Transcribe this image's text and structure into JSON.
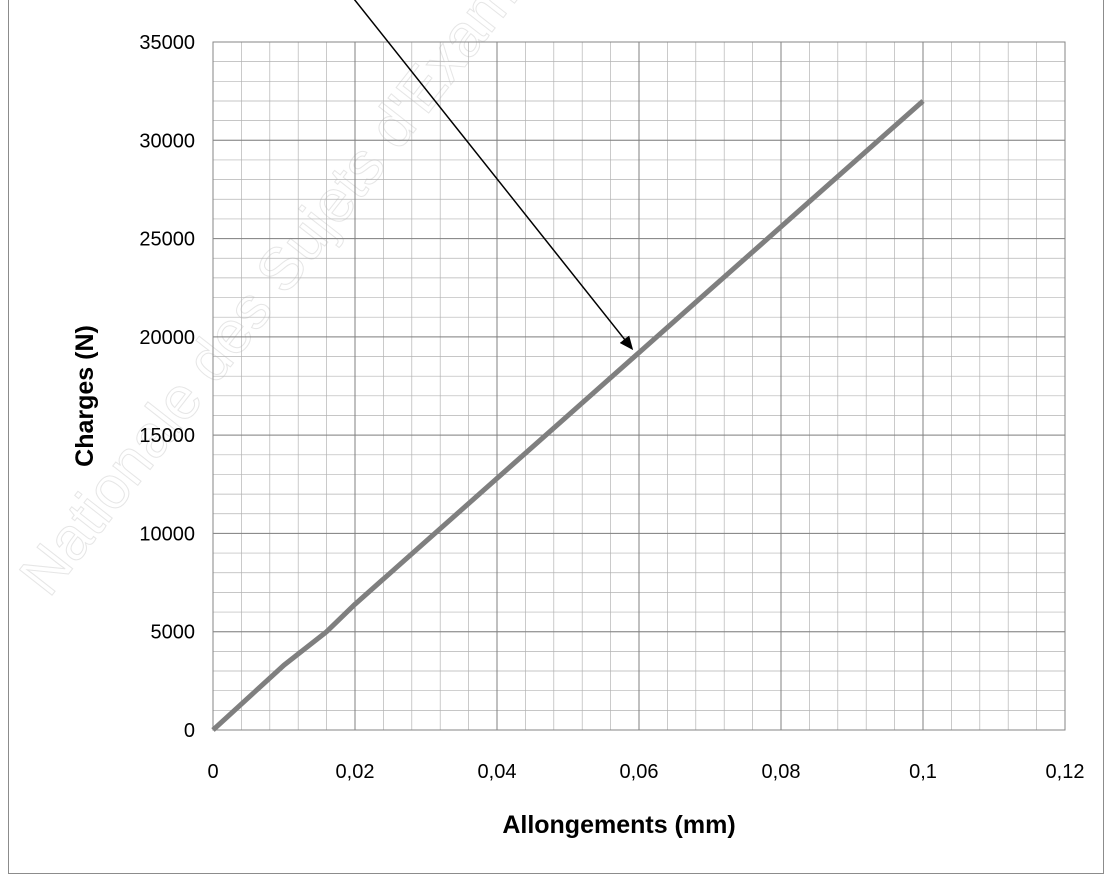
{
  "chart_data": {
    "type": "line",
    "title": "",
    "xlabel": "Allongements (mm)",
    "ylabel": "Charges (N)",
    "xlim": [
      0,
      0.12
    ],
    "ylim": [
      0,
      35000
    ],
    "x_ticks": [
      0,
      0.02,
      0.04,
      0.06,
      0.08,
      0.1,
      0.12
    ],
    "x_tick_labels": [
      "0",
      "0,02",
      "0,04",
      "0,06",
      "0,08",
      "0,1",
      "0,12"
    ],
    "y_ticks": [
      0,
      5000,
      10000,
      15000,
      20000,
      25000,
      30000,
      35000
    ],
    "y_tick_labels": [
      "0",
      "5000",
      "10000",
      "15000",
      "20000",
      "25000",
      "30000",
      "35000"
    ],
    "grid": true,
    "legend": "none",
    "series": [
      {
        "color": "#7f7f7f",
        "x": [
          0,
          0.01,
          0.016,
          0.02,
          0.03,
          0.04,
          0.05,
          0.06,
          0.07,
          0.08,
          0.09,
          0.1
        ],
        "y": [
          0,
          3300,
          5000,
          6400,
          9600,
          12800,
          16000,
          19200,
          22400,
          25600,
          28800,
          32000
        ]
      }
    ],
    "annotation": {
      "type": "arrow",
      "target": {
        "x": 0.059,
        "y": 19200
      }
    },
    "watermark": "Nationale des Sujets d'Examens"
  }
}
